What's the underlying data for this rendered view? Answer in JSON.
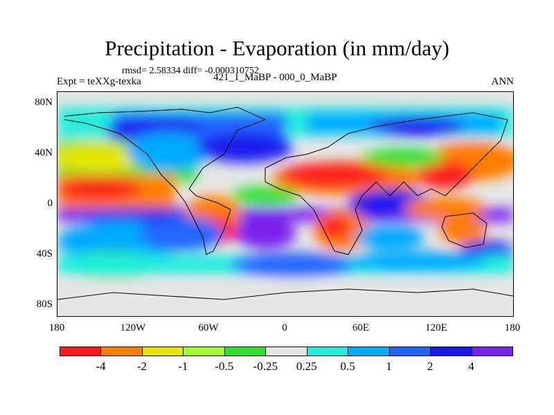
{
  "title": "Precipitation - Evaporation (in mm/day)",
  "stats": "rmsd= 2.58334 diff= -0.000310752",
  "expt": "Expt = teXXg-texka",
  "case": "421_1_MaBP - 000_0_MaBP",
  "season": "ANN",
  "lat_labels": [
    "80N",
    "40N",
    "0",
    "40S",
    "80S"
  ],
  "lon_labels": [
    "180",
    "120W",
    "60W",
    "0",
    "60E",
    "120E",
    "180"
  ],
  "colorbar": {
    "labels": [
      "-4",
      "-2",
      "-1",
      "-0.5",
      "-0.25",
      "0.25",
      "0.5",
      "1",
      "2",
      "4"
    ],
    "colors": [
      "#ff1a1a",
      "#ff7d00",
      "#e6e600",
      "#a0ff30",
      "#30e030",
      "#e6e6e6",
      "#22eedd",
      "#00aaff",
      "#2266ff",
      "#1a1aee",
      "#7a22ee"
    ]
  }
}
